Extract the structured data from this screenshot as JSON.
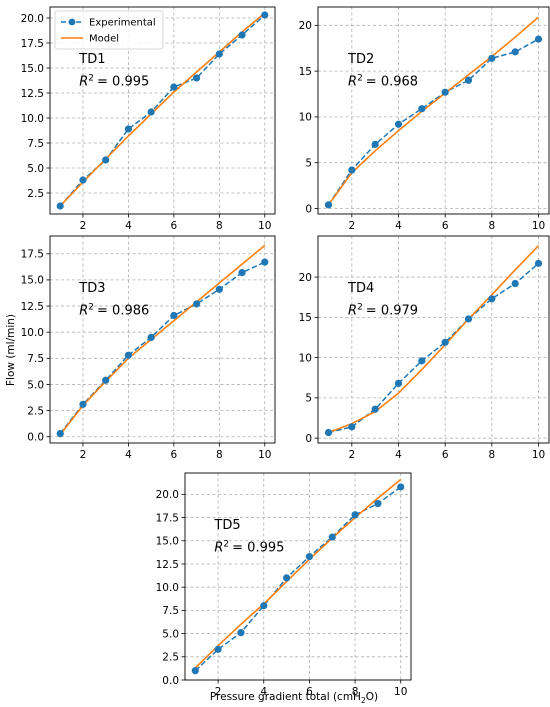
{
  "figure": {
    "ylabel": "Flow (ml/min)",
    "xlabel_text": "Pressure gradient total (cmH",
    "xlabel_sub": "2",
    "xlabel_end": "O)",
    "legend": {
      "experimental": "Experimental",
      "model": "Model",
      "placement": "top-left of TD1"
    }
  },
  "chart_data": [
    {
      "type": "line",
      "label": "TD1",
      "r2_label": "R",
      "r2_sup": "2",
      "r2_value": "= 0.995",
      "x": [
        1,
        2,
        3,
        4,
        5,
        6,
        7,
        8,
        9,
        10
      ],
      "series": [
        {
          "name": "Experimental",
          "color": "#1f77b4",
          "style": "dashed-markers",
          "values": [
            1.2,
            3.8,
            5.8,
            8.9,
            10.6,
            13.1,
            14.0,
            16.4,
            18.3,
            20.3
          ]
        },
        {
          "name": "Model",
          "color": "#ff7f0e",
          "style": "solid",
          "values": [
            1.2,
            3.6,
            5.9,
            8.2,
            10.4,
            12.6,
            14.6,
            16.6,
            18.6,
            20.5
          ]
        }
      ],
      "xlim": [
        0.55,
        10.45
      ],
      "ylim": [
        0.4,
        21.1
      ],
      "xticks": [
        2,
        4,
        6,
        8,
        10
      ],
      "yticks": [
        2.5,
        5.0,
        7.5,
        10.0,
        12.5,
        15.0,
        17.5,
        20.0
      ],
      "ytick_labels": [
        "2.5",
        "5.0",
        "7.5",
        "10.0",
        "12.5",
        "15.0",
        "17.5",
        "20.0"
      ],
      "grid": true
    },
    {
      "type": "line",
      "label": "TD2",
      "r2_label": "R",
      "r2_sup": "2",
      "r2_value": "= 0.968",
      "x": [
        1,
        2,
        3,
        4,
        5,
        6,
        7,
        8,
        9,
        10
      ],
      "series": [
        {
          "name": "Experimental",
          "color": "#1f77b4",
          "style": "dashed-markers",
          "values": [
            0.4,
            4.2,
            7.0,
            9.2,
            10.9,
            12.7,
            14.0,
            16.4,
            17.1,
            18.5
          ]
        },
        {
          "name": "Model",
          "color": "#ff7f0e",
          "style": "solid",
          "values": [
            0.4,
            3.9,
            6.3,
            8.5,
            10.6,
            12.6,
            14.6,
            16.6,
            18.7,
            20.9
          ]
        }
      ],
      "xlim": [
        0.55,
        10.45
      ],
      "ylim": [
        -0.6,
        22.0
      ],
      "xticks": [
        2,
        4,
        6,
        8,
        10
      ],
      "yticks": [
        0,
        5,
        10,
        15,
        20
      ],
      "ytick_labels": [
        "0",
        "5",
        "10",
        "15",
        "20"
      ],
      "grid": true
    },
    {
      "type": "line",
      "label": "TD3",
      "r2_label": "R",
      "r2_sup": "2",
      "r2_value": "= 0.986",
      "x": [
        1,
        2,
        3,
        4,
        5,
        6,
        7,
        8,
        9,
        10
      ],
      "series": [
        {
          "name": "Experimental",
          "color": "#1f77b4",
          "style": "dashed-markers",
          "values": [
            0.3,
            3.1,
            5.4,
            7.8,
            9.5,
            11.6,
            12.7,
            14.1,
            15.7,
            16.7
          ]
        },
        {
          "name": "Model",
          "color": "#ff7f0e",
          "style": "solid",
          "values": [
            0.2,
            3.0,
            5.3,
            7.5,
            9.3,
            11.1,
            12.9,
            14.7,
            16.5,
            18.3
          ]
        }
      ],
      "xlim": [
        0.55,
        10.45
      ],
      "ylim": [
        -0.6,
        19.2
      ],
      "xticks": [
        2,
        4,
        6,
        8,
        10
      ],
      "yticks": [
        0.0,
        2.5,
        5.0,
        7.5,
        10.0,
        12.5,
        15.0,
        17.5
      ],
      "ytick_labels": [
        "0.0",
        "2.5",
        "5.0",
        "7.5",
        "10.0",
        "12.5",
        "15.0",
        "17.5"
      ],
      "grid": true
    },
    {
      "type": "line",
      "label": "TD4",
      "r2_label": "R",
      "r2_sup": "2",
      "r2_value": "= 0.979",
      "x": [
        1,
        2,
        3,
        4,
        5,
        6,
        7,
        8,
        9,
        10
      ],
      "series": [
        {
          "name": "Experimental",
          "color": "#1f77b4",
          "style": "dashed-markers",
          "values": [
            0.7,
            1.4,
            3.6,
            6.8,
            9.6,
            11.9,
            14.8,
            17.3,
            19.2,
            21.7
          ]
        },
        {
          "name": "Model",
          "color": "#ff7f0e",
          "style": "solid",
          "values": [
            0.7,
            1.8,
            3.3,
            5.6,
            8.5,
            11.6,
            14.8,
            17.8,
            20.9,
            23.9
          ]
        }
      ],
      "xlim": [
        0.55,
        10.45
      ],
      "ylim": [
        -0.6,
        25.1
      ],
      "xticks": [
        2,
        4,
        6,
        8,
        10
      ],
      "yticks": [
        0,
        5,
        10,
        15,
        20
      ],
      "ytick_labels": [
        "0",
        "5",
        "10",
        "15",
        "20"
      ],
      "grid": true
    },
    {
      "type": "line",
      "label": "TD5",
      "r2_label": "R",
      "r2_sup": "2",
      "r2_value": "= 0.995",
      "x": [
        1,
        2,
        3,
        4,
        5,
        6,
        7,
        8,
        9,
        10
      ],
      "series": [
        {
          "name": "Experimental",
          "color": "#1f77b4",
          "style": "dashed-markers",
          "values": [
            1.0,
            3.3,
            5.1,
            8.0,
            11.0,
            13.3,
            15.4,
            17.8,
            19.0,
            20.8
          ]
        },
        {
          "name": "Model",
          "color": "#ff7f0e",
          "style": "solid",
          "values": [
            1.3,
            3.7,
            6.0,
            8.2,
            10.6,
            13.0,
            15.3,
            17.5,
            19.6,
            21.6
          ]
        }
      ],
      "xlim": [
        0.55,
        10.45
      ],
      "ylim": [
        0.0,
        22.3
      ],
      "xticks": [
        2,
        4,
        6,
        8,
        10
      ],
      "yticks": [
        0.0,
        2.5,
        5.0,
        7.5,
        10.0,
        12.5,
        15.0,
        17.5,
        20.0
      ],
      "ytick_labels": [
        "0.0",
        "2.5",
        "5.0",
        "7.5",
        "10.0",
        "12.5",
        "15.0",
        "17.5",
        "20.0"
      ],
      "grid": true
    }
  ]
}
